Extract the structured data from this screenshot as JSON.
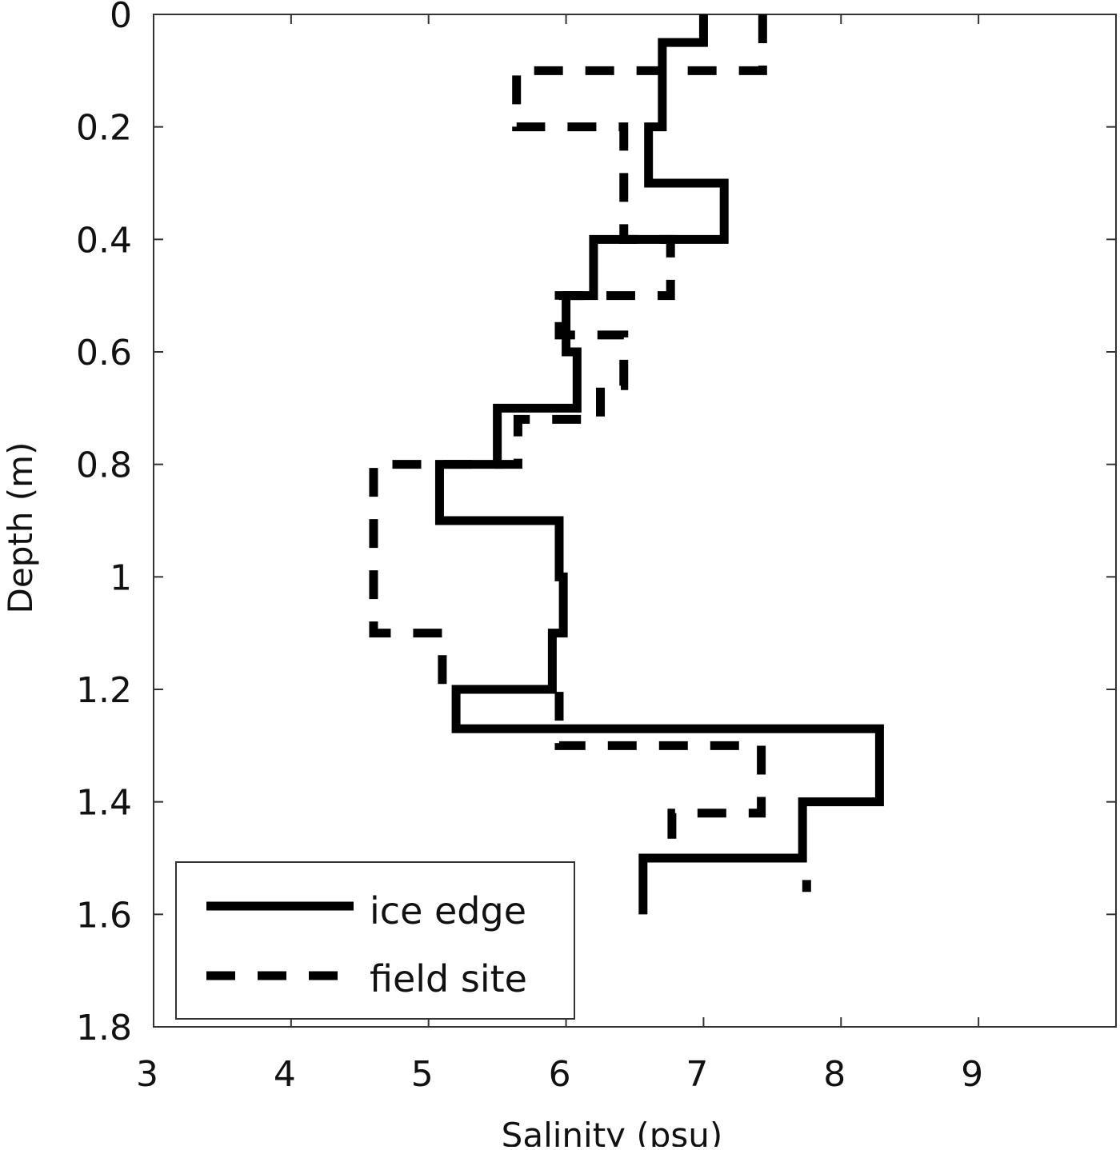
{
  "chart_data": {
    "type": "line",
    "title": "",
    "xlabel": "Salinity (psu)",
    "ylabel": "Depth (m)",
    "xlim": [
      3,
      10
    ],
    "ylim": [
      0,
      1.8
    ],
    "y_reversed": true,
    "xticks": [
      3,
      4,
      5,
      6,
      7,
      8,
      9
    ],
    "yticks": [
      "0",
      "0.2",
      "0.4",
      "0.6",
      "0.8",
      "1",
      "1.2",
      "1.4",
      "1.6",
      "1.8"
    ],
    "grid": false,
    "legend_position": "bottom-left",
    "series": [
      {
        "name": "ice edge",
        "style": "solid",
        "color": "#000000",
        "depth_edges": [
          0,
          0.05,
          0.2,
          0.3,
          0.4,
          0.5,
          0.6,
          0.7,
          0.8,
          0.9,
          1.0,
          1.1,
          1.2,
          1.27,
          1.4,
          1.5,
          1.6
        ],
        "salinity": [
          7.0,
          6.7,
          6.6,
          7.15,
          6.2,
          6.0,
          6.08,
          5.5,
          5.08,
          5.95,
          5.98,
          5.9,
          5.2,
          8.28,
          7.72,
          6.56
        ]
      },
      {
        "name": "field site",
        "style": "dashed",
        "color": "#000000",
        "depth_edges": [
          0,
          0.1,
          0.2,
          0.4,
          0.5,
          0.57,
          0.66,
          0.72,
          0.8,
          1.1,
          1.2,
          1.3,
          1.42,
          1.5,
          1.56
        ],
        "salinity": [
          7.43,
          5.64,
          6.42,
          6.76,
          5.95,
          6.42,
          6.25,
          5.65,
          4.6,
          5.1,
          5.95,
          7.42,
          6.77,
          7.75
        ]
      }
    ]
  }
}
